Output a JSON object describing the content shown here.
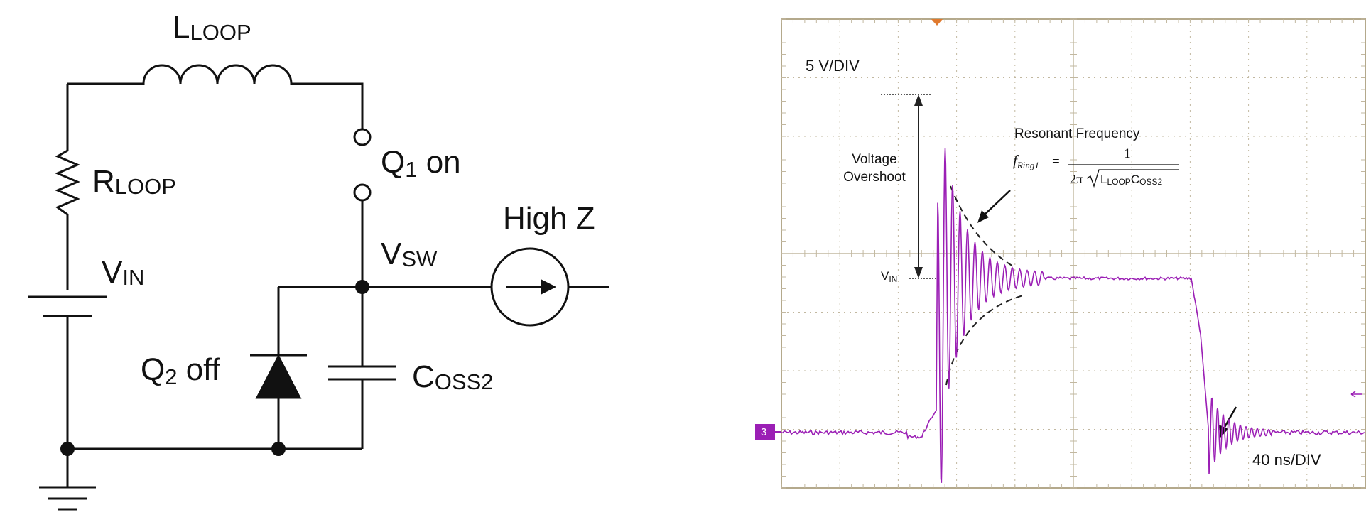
{
  "circuit": {
    "l_loop": {
      "main": "L",
      "sub": "LOOP"
    },
    "r_loop": {
      "main": "R",
      "sub": "LOOP"
    },
    "v_in": {
      "main": "V",
      "sub": "IN"
    },
    "q1": {
      "main": "Q",
      "sub": "1",
      "suffix": " on"
    },
    "v_sw": {
      "main": "V",
      "sub": "SW"
    },
    "high_z": "High Z",
    "q2": {
      "main": "Q",
      "sub": "2",
      "suffix": " off"
    },
    "c_oss2": {
      "main": "C",
      "sub": "OSS2"
    }
  },
  "scope": {
    "volts_per_div": "5 V/DIV",
    "time_per_div": "40 ns/DIV",
    "channel_marker": "3",
    "overshoot_label_line1": "Voltage",
    "overshoot_label_line2": "Overshoot",
    "vin_label": {
      "main": "V",
      "sub": "IN"
    },
    "resonant_title": "Resonant Frequency",
    "formula": {
      "f": "f",
      "f_sub": "Ring1",
      "equals": "=",
      "numerator": "1",
      "two_pi": "2π",
      "l_main": "L",
      "l_sub": "LOOP",
      "c_main": "C",
      "c_sub": "OSS2"
    },
    "colors": {
      "trace": "#9b1fb5",
      "grid": "#c2b8a0",
      "frame": "#b4a98c",
      "marker": "#e07a2e"
    }
  }
}
